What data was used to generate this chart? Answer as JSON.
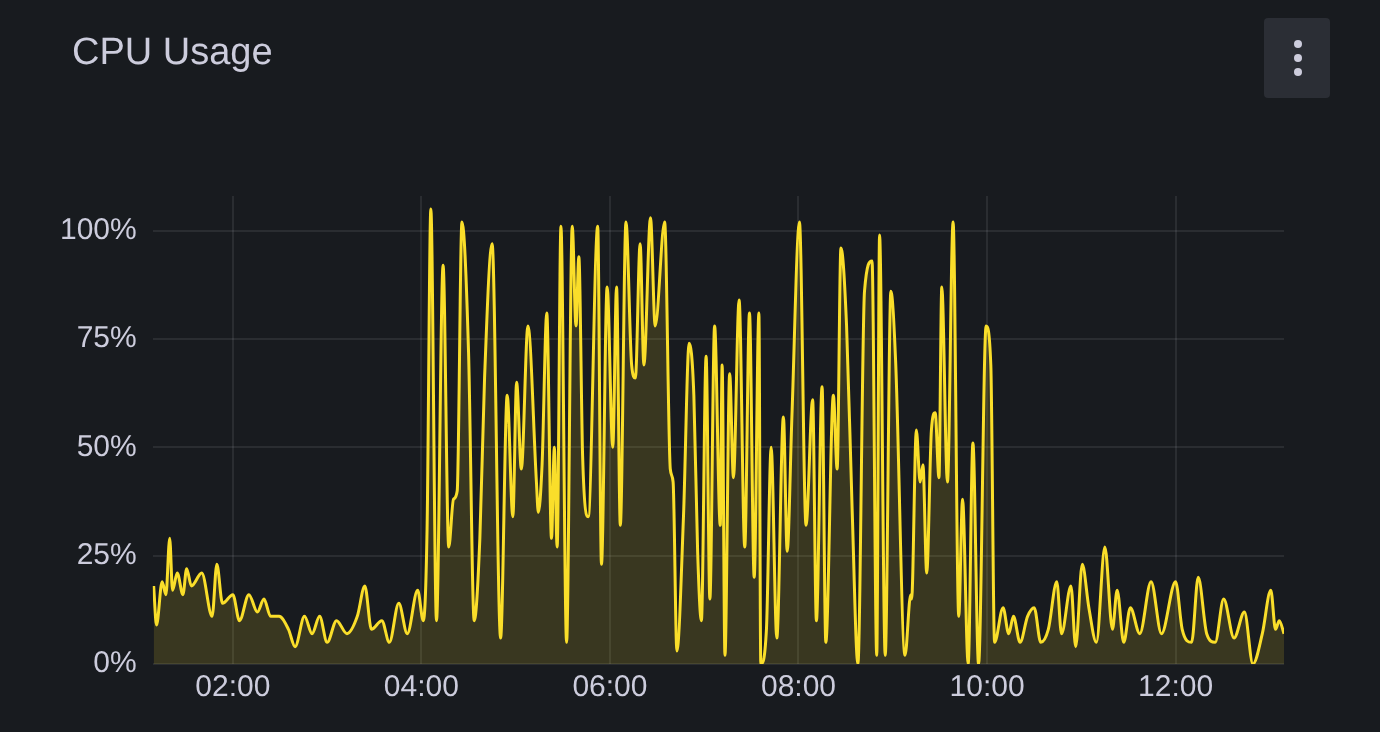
{
  "chart_data": {
    "type": "area",
    "title": "CPU Usage",
    "x": [
      1.16,
      1.19,
      1.25,
      1.29,
      1.33,
      1.36,
      1.41,
      1.47,
      1.51,
      1.56,
      1.67,
      1.78,
      1.83,
      1.89,
      2.0,
      2.07,
      2.17,
      2.26,
      2.33,
      2.4,
      2.49,
      2.59,
      2.66,
      2.76,
      2.84,
      2.92,
      3.0,
      3.1,
      3.21,
      3.32,
      3.4,
      3.47,
      3.58,
      3.66,
      3.76,
      3.85,
      3.96,
      4.02,
      4.06,
      4.1,
      4.16,
      4.23,
      4.29,
      4.34,
      4.38,
      4.43,
      4.5,
      4.56,
      4.62,
      4.67,
      4.75,
      4.84,
      4.91,
      4.97,
      5.01,
      5.06,
      5.13,
      5.22,
      5.24,
      5.28,
      5.33,
      5.38,
      5.41,
      5.44,
      5.48,
      5.54,
      5.6,
      5.64,
      5.67,
      5.71,
      5.77,
      5.87,
      5.91,
      5.97,
      6.03,
      6.07,
      6.11,
      6.17,
      6.23,
      6.27,
      6.32,
      6.36,
      6.43,
      6.48,
      6.58,
      6.64,
      6.67,
      6.71,
      6.78,
      6.84,
      6.89,
      6.93,
      6.97,
      7.02,
      7.06,
      7.11,
      7.17,
      7.19,
      7.22,
      7.27,
      7.31,
      7.37,
      7.43,
      7.48,
      7.53,
      7.58,
      7.6,
      7.66,
      7.71,
      7.77,
      7.84,
      7.88,
      7.93,
      8.01,
      8.08,
      8.15,
      8.19,
      8.25,
      8.29,
      8.37,
      8.41,
      8.45,
      8.51,
      8.57,
      8.63,
      8.7,
      8.78,
      8.83,
      8.86,
      8.92,
      8.98,
      9.03,
      9.13,
      9.19,
      9.2,
      9.25,
      9.29,
      9.32,
      9.36,
      9.41,
      9.45,
      9.49,
      9.52,
      9.58,
      9.64,
      9.7,
      9.74,
      9.8,
      9.85,
      9.91,
      9.99,
      10.04,
      10.08,
      10.17,
      10.23,
      10.28,
      10.35,
      10.43,
      10.5,
      10.57,
      10.65,
      10.74,
      10.79,
      10.89,
      10.94,
      11.01,
      11.08,
      11.16,
      11.25,
      11.33,
      11.38,
      11.45,
      11.52,
      11.62,
      11.74,
      11.85,
      12.0,
      12.07,
      12.17,
      12.24,
      12.33,
      12.42,
      12.51,
      12.62,
      12.73,
      12.82,
      12.92,
      13.01,
      13.06,
      13.1,
      13.15
    ],
    "series": [
      {
        "color": "#fade2a",
        "values": [
          18,
          9,
          19,
          16,
          29,
          17,
          21,
          16,
          22,
          18,
          21,
          11,
          23,
          14,
          16,
          10,
          16,
          12,
          15,
          11,
          11,
          8,
          4,
          11,
          7,
          11,
          5,
          10,
          7,
          11,
          18,
          8,
          10,
          5,
          14,
          7,
          17,
          10,
          31,
          105,
          10,
          92,
          27,
          38,
          40,
          102,
          72,
          10,
          29,
          66,
          97,
          6,
          62,
          34,
          65,
          45,
          78,
          42,
          35,
          46,
          81,
          29,
          50,
          27,
          101,
          5,
          101,
          78,
          94,
          48,
          34,
          101,
          23,
          87,
          50,
          87,
          32,
          102,
          69,
          66,
          97,
          69,
          103,
          78,
          102,
          45,
          42,
          3,
          34,
          74,
          62,
          26,
          10,
          71,
          15,
          78,
          32,
          69,
          2,
          67,
          43,
          84,
          27,
          81,
          20,
          81,
          0,
          8,
          50,
          6,
          57,
          26,
          57,
          102,
          32,
          61,
          10,
          64,
          5,
          62,
          45,
          96,
          78,
          35,
          0,
          86,
          93,
          2,
          99,
          2,
          86,
          70,
          2,
          16,
          15,
          54,
          42,
          46,
          21,
          54,
          58,
          43,
          87,
          42,
          102,
          11,
          38,
          0,
          51,
          0,
          78,
          69,
          5,
          13,
          7,
          11,
          5,
          11,
          13,
          5,
          8,
          19,
          7,
          18,
          4,
          23,
          13,
          5,
          27,
          8,
          17,
          5,
          13,
          7,
          19,
          7,
          19,
          8,
          5,
          20,
          7,
          5,
          15,
          6,
          12,
          0,
          7,
          17,
          8,
          10,
          7
        ]
      }
    ],
    "xlim": [
      1.15,
      13.15
    ],
    "ylim": [
      0,
      108
    ],
    "xticks": [
      {
        "value": 2,
        "label": "02:00"
      },
      {
        "value": 4,
        "label": "04:00"
      },
      {
        "value": 6,
        "label": "06:00"
      },
      {
        "value": 8,
        "label": "08:00"
      },
      {
        "value": 10,
        "label": "10:00"
      },
      {
        "value": 12,
        "label": "12:00"
      }
    ],
    "yticks": [
      {
        "value": 0,
        "label": "0%"
      },
      {
        "value": 25,
        "label": "25%"
      },
      {
        "value": 50,
        "label": "50%"
      },
      {
        "value": 75,
        "label": "75%"
      },
      {
        "value": 100,
        "label": "100%"
      }
    ],
    "grid": true,
    "legend": false
  }
}
